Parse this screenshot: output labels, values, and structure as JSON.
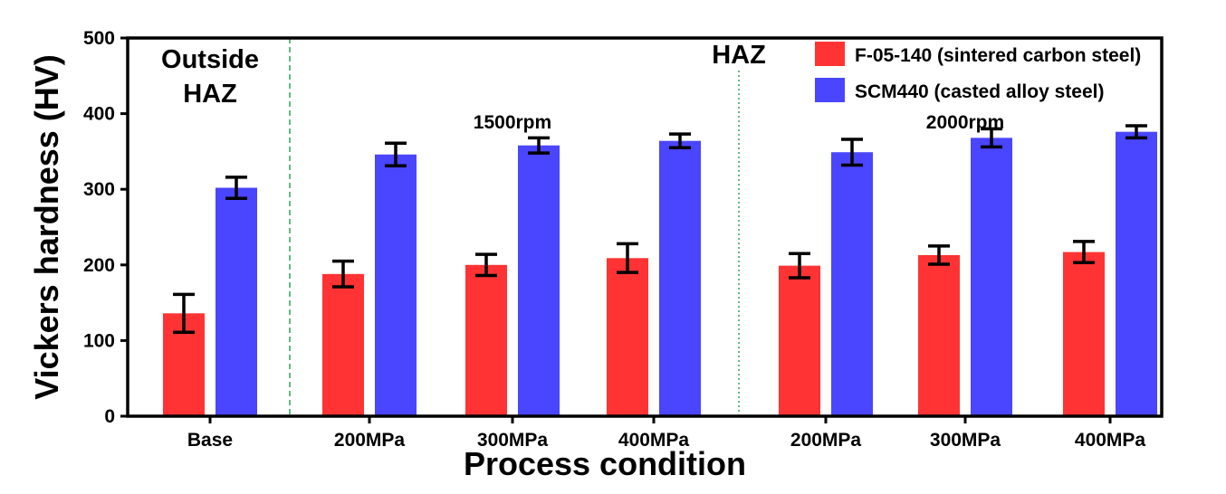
{
  "chart_data": {
    "type": "bar",
    "xlabel": "Process condition",
    "ylabel": "Vickers hardness (HV)",
    "ylim": [
      0,
      500
    ],
    "yticks": [
      "0",
      "100",
      "200",
      "300",
      "400",
      "500"
    ],
    "categories": [
      "Base",
      "200MPa",
      "300MPa",
      "400MPa",
      "200MPa",
      "300MPa",
      "400MPa"
    ],
    "series": [
      {
        "name": "F-05-140 (sintered carbon steel)",
        "color": "#ff3333",
        "values": [
          136,
          188,
          200,
          209,
          199,
          213,
          217
        ],
        "errors": [
          25,
          17,
          14,
          19,
          16,
          12,
          14
        ]
      },
      {
        "name": "SCM440 (casted alloy steel)",
        "color": "#4a45ff",
        "values": [
          302,
          346,
          358,
          364,
          349,
          368,
          376
        ],
        "errors": [
          14,
          15,
          10,
          9,
          17,
          12,
          8
        ]
      }
    ],
    "annotations": {
      "outside_haz_line1": "Outside",
      "outside_haz_line2": "HAZ",
      "haz": "HAZ",
      "rpm_1500": "1500rpm",
      "rpm_2000": "2000rpm"
    },
    "legend_position": "top-right",
    "grid": false
  }
}
